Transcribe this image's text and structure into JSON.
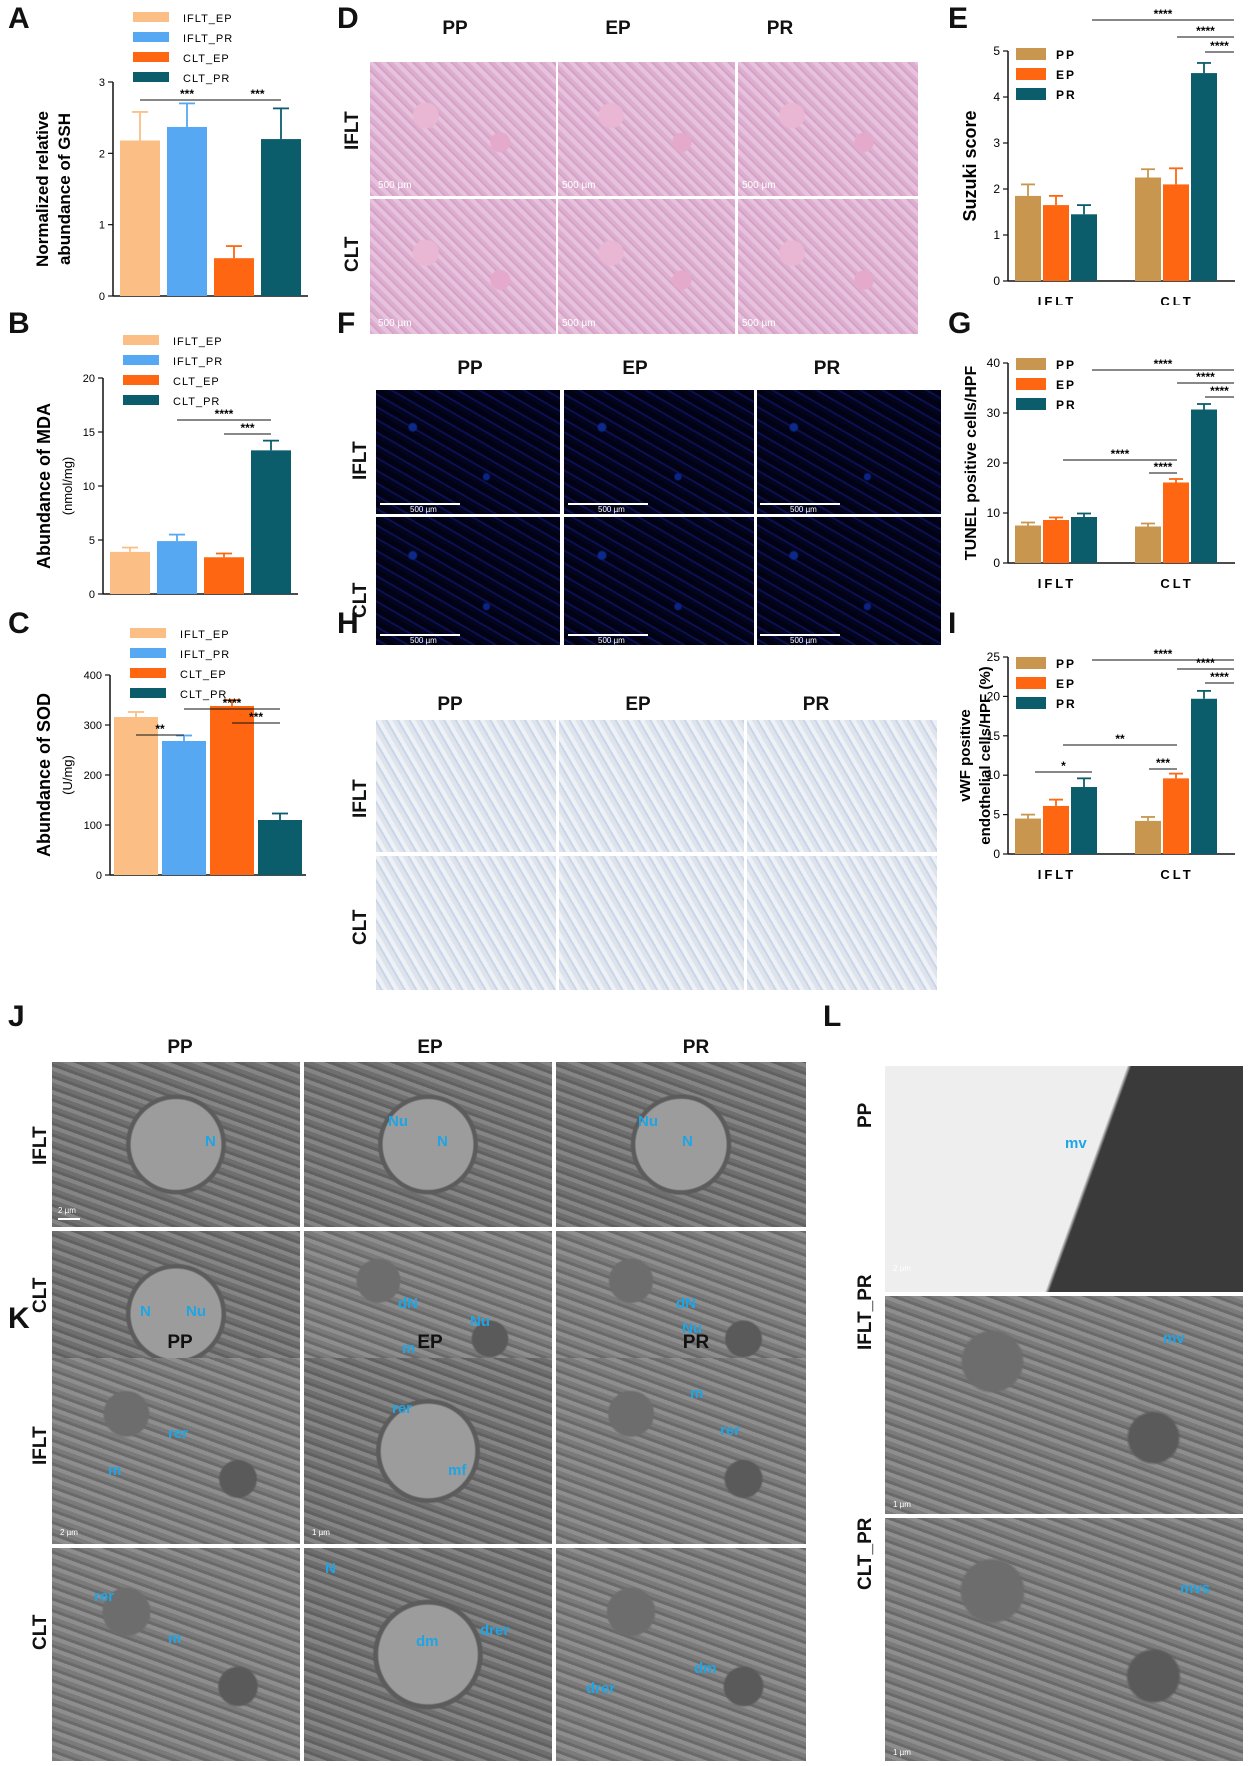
{
  "panels": {
    "A": {
      "label": "A"
    },
    "B": {
      "label": "B"
    },
    "C": {
      "label": "C"
    },
    "D": {
      "label": "D"
    },
    "E": {
      "label": "E"
    },
    "F": {
      "label": "F"
    },
    "G": {
      "label": "G"
    },
    "H": {
      "label": "H"
    },
    "I": {
      "label": "I"
    },
    "J": {
      "label": "J"
    },
    "K": {
      "label": "K"
    },
    "L": {
      "label": "L"
    }
  },
  "micro": {
    "cols": [
      "PP",
      "EP",
      "PR"
    ],
    "rows": [
      "IFLT",
      "CLT"
    ],
    "scale_he": "500 µm",
    "scale_fl": "500 µm",
    "l_rows": [
      "PP",
      "IFLT_PR",
      "CLT_PR"
    ]
  },
  "em": {
    "j_scale": [
      "2 µm"
    ],
    "k_scale": [
      "2 µm",
      "1 µm"
    ],
    "l_scale": [
      "2 µm",
      "1 µm",
      "1 µm"
    ],
    "j_ann": {
      "ifl_pp": [
        "N"
      ],
      "ifl_ep": [
        "Nu",
        "N"
      ],
      "ifl_pr": [
        "Nu",
        "N"
      ],
      "clt_pp": [
        "N",
        "Nu"
      ],
      "clt_ep": [
        "dN",
        "Nu",
        "m"
      ],
      "clt_pr": [
        "dN",
        "Nu"
      ]
    },
    "k_ann": {
      "ifl_pp": [
        "rer",
        "m"
      ],
      "ifl_ep": [
        "rer",
        "mf"
      ],
      "ifl_pr": [
        "m",
        "rer"
      ],
      "clt_pp": [
        "rer",
        "m"
      ],
      "clt_ep": [
        "N",
        "dm",
        "drer"
      ],
      "clt_pr": [
        "drer",
        "dm"
      ]
    },
    "l_ann": [
      "mv",
      "mv",
      "mvs"
    ]
  },
  "colors": {
    "peach": "#fbbf86",
    "lightblue": "#57a8f3",
    "orange": "#ff6611",
    "teal": "#0c5d6b",
    "tan": "#c8964f"
  },
  "chart_data": [
    {
      "id": "A",
      "type": "bar",
      "categories": [
        "IFLT_EP",
        "IFLT_PR",
        "CLT_EP",
        "CLT_PR"
      ],
      "values": [
        2.18,
        2.37,
        0.53,
        2.2
      ],
      "errors": [
        0.4,
        0.33,
        0.17,
        0.43
      ],
      "ylabel": "Normalized relative abundance  of GSH",
      "ylim": [
        0,
        3
      ],
      "yticks": [
        "0",
        "1",
        "2",
        "3"
      ],
      "legend": [
        "IFLT_EP",
        "IFLT_PR",
        "CLT_EP",
        "CLT_PR"
      ],
      "sig": [
        "***",
        "***"
      ]
    },
    {
      "id": "B",
      "type": "bar",
      "categories": [
        "IFLT_EP",
        "IFLT_PR",
        "CLT_EP",
        "CLT_PR"
      ],
      "values": [
        3.9,
        4.9,
        3.4,
        13.3
      ],
      "errors": [
        0.4,
        0.6,
        0.35,
        0.9
      ],
      "ylabel": "Abundance of MDA",
      "yunit": "(nmol/mg)",
      "ylim": [
        0,
        20
      ],
      "yticks": [
        "0",
        "5",
        "10",
        "15",
        "20"
      ],
      "legend": [
        "IFLT_EP",
        "IFLT_PR",
        "CLT_EP",
        "CLT_PR"
      ],
      "sig": [
        "****",
        "***"
      ]
    },
    {
      "id": "C",
      "type": "bar",
      "categories": [
        "IFLT_EP",
        "IFLT_PR",
        "CLT_EP",
        "CLT_PR"
      ],
      "values": [
        316,
        268,
        338,
        110
      ],
      "errors": [
        10,
        11,
        12,
        13
      ],
      "ylabel": "Abundance of SOD",
      "yunit": "(U/mg)",
      "ylim": [
        0,
        400
      ],
      "yticks": [
        "0",
        "100",
        "200",
        "300",
        "400"
      ],
      "legend": [
        "IFLT_EP",
        "IFLT_PR",
        "CLT_EP",
        "CLT_PR"
      ],
      "sig": [
        "**",
        "****",
        "***"
      ]
    },
    {
      "id": "E",
      "type": "bar",
      "categories": [
        "IFLT",
        "CLT"
      ],
      "series": [
        {
          "name": "PP",
          "values": [
            1.85,
            2.25
          ],
          "errors": [
            0.25,
            0.18
          ]
        },
        {
          "name": "EP",
          "values": [
            1.65,
            2.1
          ],
          "errors": [
            0.2,
            0.35
          ]
        },
        {
          "name": "PR",
          "values": [
            1.45,
            4.52
          ],
          "errors": [
            0.2,
            0.22
          ]
        }
      ],
      "ylabel": "Suzuki score",
      "ylim": [
        0,
        5
      ],
      "yticks": [
        "0",
        "1",
        "2",
        "3",
        "4",
        "5"
      ],
      "sig": [
        "****",
        "****",
        "****"
      ]
    },
    {
      "id": "G",
      "type": "bar",
      "categories": [
        "IFLT",
        "CLT"
      ],
      "series": [
        {
          "name": "PP",
          "values": [
            7.5,
            7.3
          ],
          "errors": [
            0.6,
            0.6
          ]
        },
        {
          "name": "EP",
          "values": [
            8.6,
            16.1
          ],
          "errors": [
            0.5,
            0.7
          ]
        },
        {
          "name": "PR",
          "values": [
            9.2,
            30.7
          ],
          "errors": [
            0.7,
            1.1
          ]
        }
      ],
      "ylabel": "TUNEL positive cells/HPF",
      "ylim": [
        0,
        40
      ],
      "yticks": [
        "0",
        "10",
        "20",
        "30",
        "40"
      ],
      "sig": [
        "****",
        "****",
        "****",
        "****",
        "****"
      ]
    },
    {
      "id": "I",
      "type": "bar",
      "categories": [
        "IFLT",
        "CLT"
      ],
      "series": [
        {
          "name": "PP",
          "values": [
            4.5,
            4.2
          ],
          "errors": [
            0.5,
            0.5
          ]
        },
        {
          "name": "EP",
          "values": [
            6.1,
            9.6
          ],
          "errors": [
            0.8,
            0.6
          ]
        },
        {
          "name": "PR",
          "values": [
            8.5,
            19.7
          ],
          "errors": [
            1.1,
            1.0
          ]
        }
      ],
      "ylabel": "vWF positive",
      "ylabel2": "endothelial cells/HPF (%)",
      "ylim": [
        0,
        25
      ],
      "yticks": [
        "0",
        "5",
        "10",
        "15",
        "20",
        "25"
      ],
      "sig": [
        "*",
        "**",
        "***",
        "****",
        "****",
        "****"
      ]
    }
  ]
}
